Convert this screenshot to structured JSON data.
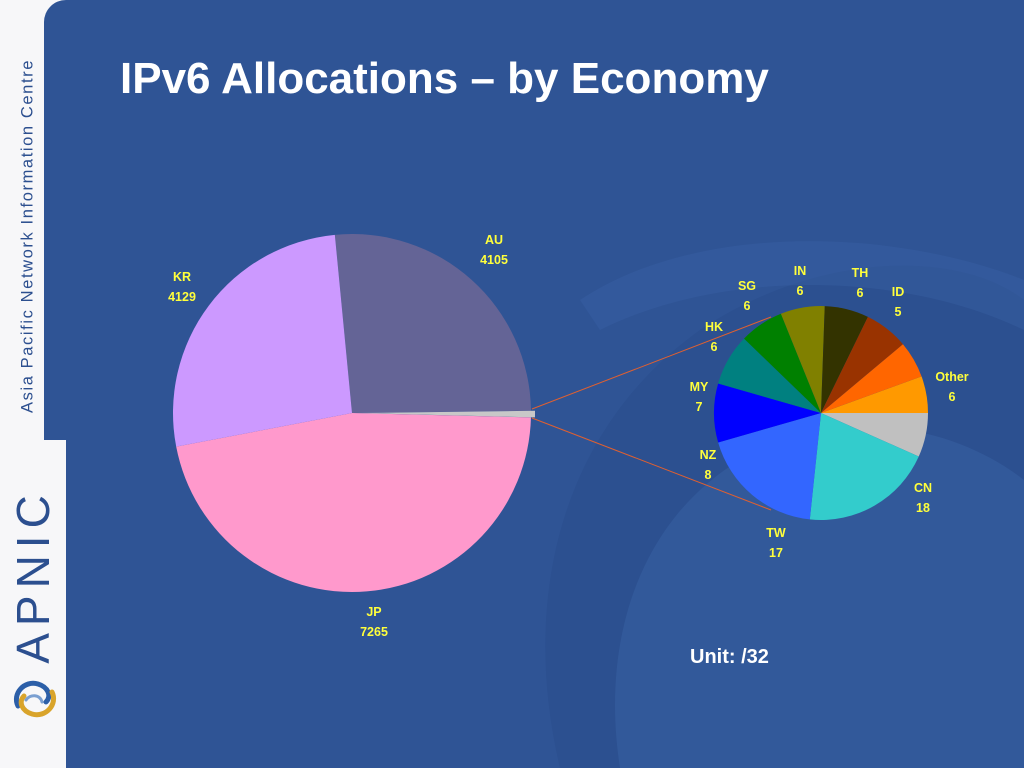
{
  "slide": {
    "title": "IPv6 Allocations – by Economy",
    "unit_label": "Unit: /32"
  },
  "sidebar": {
    "org_name": "Asia Pacific Network Information Centre",
    "brand": "APNIC",
    "logo_icon": "apnic-swirl-icon"
  },
  "colors": {
    "background": "#2f5495",
    "label": "#ffff3c",
    "connector": "#e06030"
  },
  "chart_data": [
    {
      "type": "pie",
      "slices": [
        {
          "label": "AU",
          "value": 4105,
          "color": "#646496"
        },
        {
          "label": "Other",
          "value": 92,
          "color": "#c8c8c8"
        },
        {
          "label": "JP",
          "value": 7265,
          "color": "#ff99cc"
        },
        {
          "label": "KR",
          "value": 4129,
          "color": "#cc99ff"
        }
      ],
      "value_labels": {
        "AU": "4105",
        "JP": "7265",
        "KR": "4129"
      },
      "exploded_slice": "Other"
    },
    {
      "type": "pie",
      "slices": [
        {
          "label": "ID",
          "value": 5,
          "color": "#ff9900"
        },
        {
          "label": "Other",
          "value": 6,
          "color": "#c0c0c0"
        },
        {
          "label": "CN",
          "value": 18,
          "color": "#33cccc"
        },
        {
          "label": "TW",
          "value": 17,
          "color": "#3366ff"
        },
        {
          "label": "NZ",
          "value": 8,
          "color": "#0000ff"
        },
        {
          "label": "MY",
          "value": 7,
          "color": "#008080"
        },
        {
          "label": "HK",
          "value": 6,
          "color": "#008000"
        },
        {
          "label": "SG",
          "value": 6,
          "color": "#808000"
        },
        {
          "label": "IN",
          "value": 6,
          "color": "#333300"
        },
        {
          "label": "TH",
          "value": 6,
          "color": "#993300"
        },
        {
          "label": "",
          "value": 5,
          "color": "#ff6600"
        }
      ]
    }
  ]
}
